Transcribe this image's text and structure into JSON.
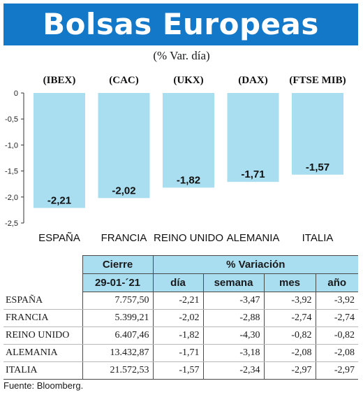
{
  "title": "Bolsas Europeas",
  "subtitle": "(% Var. día)",
  "chart_data": {
    "type": "bar",
    "indices": [
      "(IBEX)",
      "(CAC)",
      "(UKX)",
      "(DAX)",
      "(FTSE MIB)"
    ],
    "categories": [
      "ESPAÑA",
      "FRANCIA",
      "REINO UNIDO",
      "ALEMANIA",
      "ITALIA"
    ],
    "values": [
      -2.21,
      -2.02,
      -1.82,
      -1.71,
      -1.57
    ],
    "value_labels": [
      "-2,21",
      "-2,02",
      "-1,82",
      "-1,71",
      "-1,57"
    ],
    "ylim": [
      -2.5,
      0
    ],
    "yticks": [
      0,
      -0.5,
      -1.0,
      -1.5,
      -2.0,
      -2.5
    ],
    "ytick_labels": [
      "0",
      "-0,5",
      "-1,0",
      "-1,5",
      "-2,0",
      "-2,5"
    ],
    "bar_color": "#a9ddf0",
    "grid": false
  },
  "table": {
    "group_headers": {
      "close": "Cierre",
      "variation": "% Variación"
    },
    "date": "29-01-´21",
    "columns": [
      "día",
      "semana",
      "mes",
      "año"
    ],
    "rows": [
      {
        "name": "ESPAÑA",
        "close": "7.757,50",
        "day": "-2,21",
        "week": "-3,47",
        "month": "-3,92",
        "year": "-3,92"
      },
      {
        "name": "FRANCIA",
        "close": "5.399,21",
        "day": "-2,02",
        "week": "-2,88",
        "month": "-2,74",
        "year": "-2,74"
      },
      {
        "name": "REINO UNIDO",
        "close": "6.407,46",
        "day": "-1,82",
        "week": "-4,30",
        "month": "-0,82",
        "year": "-0,82"
      },
      {
        "name": "ALEMANIA",
        "close": "13.432,87",
        "day": "-1,71",
        "week": "-3,18",
        "month": "-2,08",
        "year": "-2,08"
      },
      {
        "name": "ITALIA",
        "close": "21.572,53",
        "day": "-1,57",
        "week": "-2,34",
        "month": "-2,97",
        "year": "-2,97"
      }
    ]
  },
  "source": "Fuente: Bloomberg.",
  "colors": {
    "banner": "#1478c8",
    "bars": "#a9ddf0",
    "header": "#a9ddf0"
  }
}
